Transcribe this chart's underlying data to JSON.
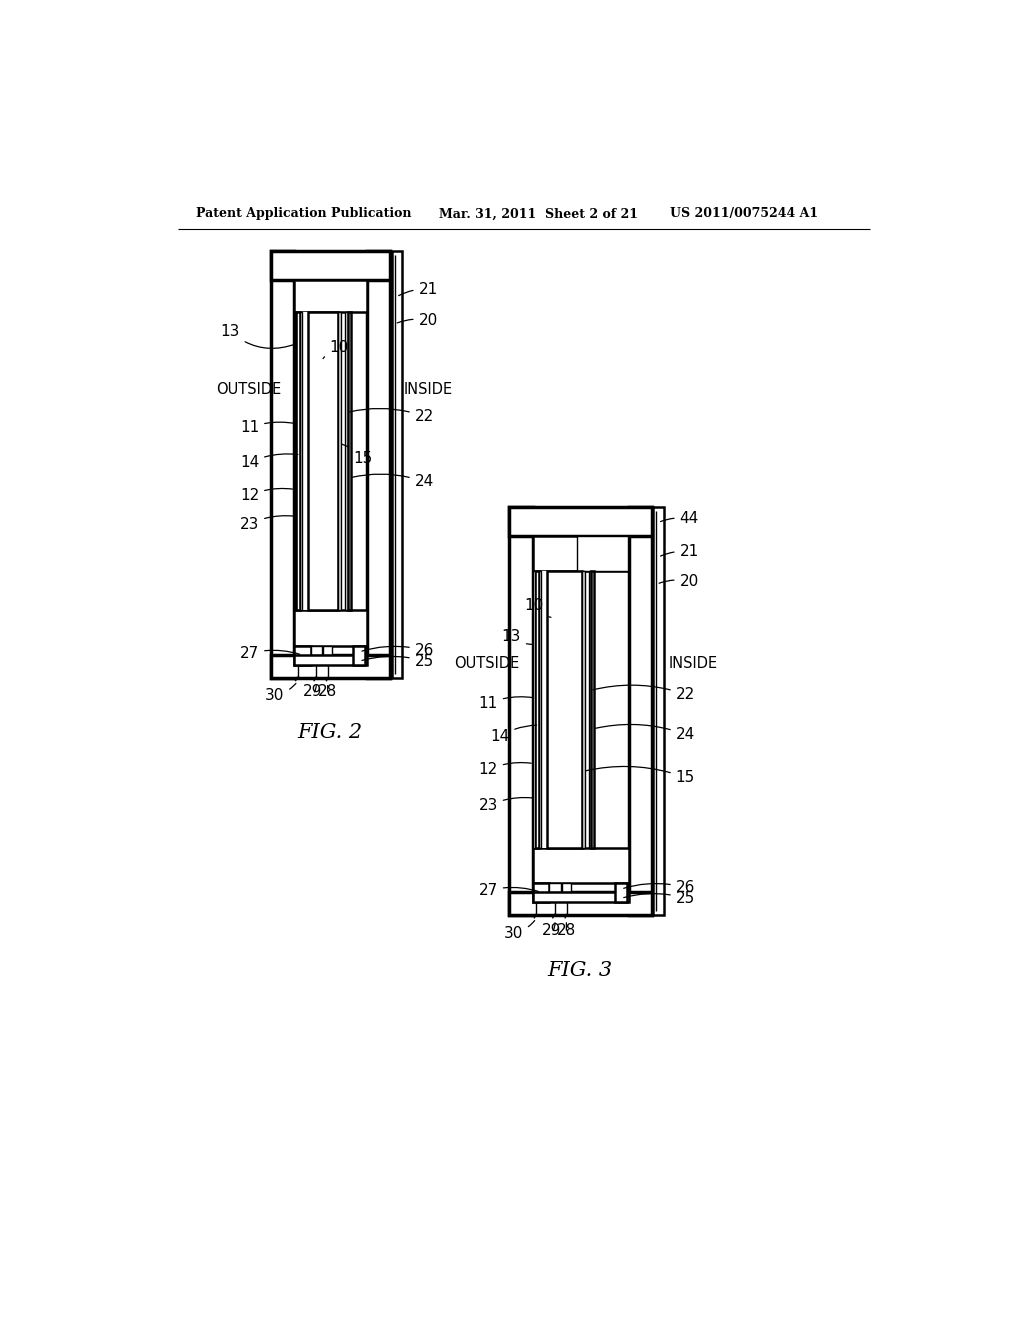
{
  "title_left": "Patent Application Publication",
  "title_mid": "Mar. 31, 2011  Sheet 2 of 21",
  "title_right": "US 2011/0075244 A1",
  "fig2_label": "FIG. 2",
  "fig3_label": "FIG. 3",
  "background": "#ffffff"
}
